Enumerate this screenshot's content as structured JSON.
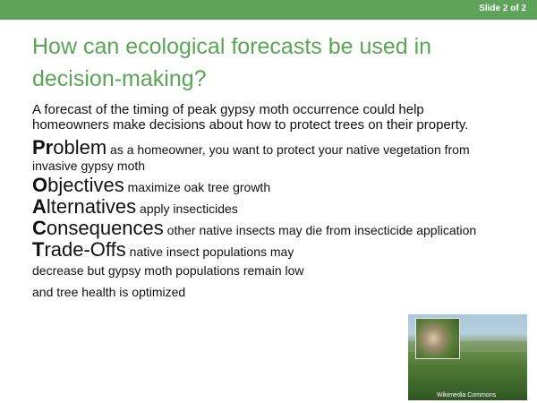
{
  "slide": {
    "number_label": "Slide 2 of 2",
    "title": "How can ecological forecasts be used in decision-making?",
    "intro": "A forecast of the timing of peak gypsy moth occurrence could help homeowners make decisions about how to protect trees on their property.",
    "items": [
      {
        "first": "Pr",
        "rest": "oblem",
        "desc": " as a homeowner, you want to protect your native vegetation from invasive gypsy moth"
      },
      {
        "first": "O",
        "rest": "bjectives",
        "desc": "  maximize oak tree growth"
      },
      {
        "first": "A",
        "rest": "lternatives",
        "desc": " apply insecticides"
      },
      {
        "first": "C",
        "rest": "onsequences",
        "desc": " other native insects may die from insecticide application"
      },
      {
        "first": "T",
        "rest": "rade-Offs",
        "desc1": "  native insect populations may",
        "line2": "decrease but gypsy moth populations remain low",
        "line3": "and tree health is optimized"
      }
    ],
    "photo_caption": "Wikimedia Commons"
  }
}
